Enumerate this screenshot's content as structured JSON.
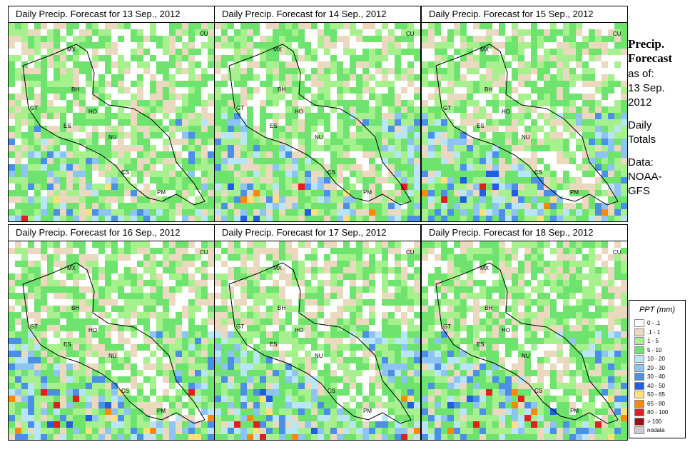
{
  "panels": [
    {
      "title": "Daily Precip. Forecast for  13 Sep., 2012",
      "seed": 13,
      "wet": 0.35
    },
    {
      "title": "Daily Precip. Forecast for  14 Sep., 2012",
      "seed": 14,
      "wet": 0.5
    },
    {
      "title": "Daily Precip. Forecast for  15 Sep., 2012",
      "seed": 15,
      "wet": 0.6
    },
    {
      "title": "Daily Precip. Forecast for  16 Sep., 2012",
      "seed": 16,
      "wet": 0.6
    },
    {
      "title": "Daily Precip. Forecast for  17 Sep., 2012",
      "seed": 17,
      "wet": 0.75
    },
    {
      "title": "Daily Precip. Forecast for  18 Sep., 2012",
      "seed": 18,
      "wet": 0.65
    }
  ],
  "country_labels": [
    "MX",
    "CU",
    "BH",
    "GT",
    "HO",
    "ES",
    "NU",
    "CS",
    "PM"
  ],
  "sidebar": {
    "title_line1": "Precip.",
    "title_line2": "Forecast",
    "as_of": "as of:",
    "date_line1": "13 Sep.",
    "date_line2": "2012",
    "totals_line1": "Daily",
    "totals_line2": "Totals",
    "data_line1": "Data:",
    "data_line2": "NOAA-",
    "data_line3": "GFS"
  },
  "legend": {
    "title": "PPT (mm)",
    "items": [
      {
        "label": "0 - .1",
        "color": "#ffffff"
      },
      {
        "label": ".1 - 1",
        "color": "#ead8bf"
      },
      {
        "label": "1 - 5",
        "color": "#a6f08e"
      },
      {
        "label": "5 - 10",
        "color": "#6ee36e"
      },
      {
        "label": "10 - 20",
        "color": "#b9e6f7"
      },
      {
        "label": "20 - 30",
        "color": "#8ec4f2"
      },
      {
        "label": "30 - 40",
        "color": "#4a90e6"
      },
      {
        "label": "40 - 50",
        "color": "#1f5fe0"
      },
      {
        "label": "50 - 65",
        "color": "#ffe07a"
      },
      {
        "label": "65 - 80",
        "color": "#ff8a00"
      },
      {
        "label": "80 - 100",
        "color": "#e31e1e"
      },
      {
        "label": "> 100",
        "color": "#9b1010"
      },
      {
        "label": "nodata",
        "color": "#cccccc"
      }
    ]
  }
}
